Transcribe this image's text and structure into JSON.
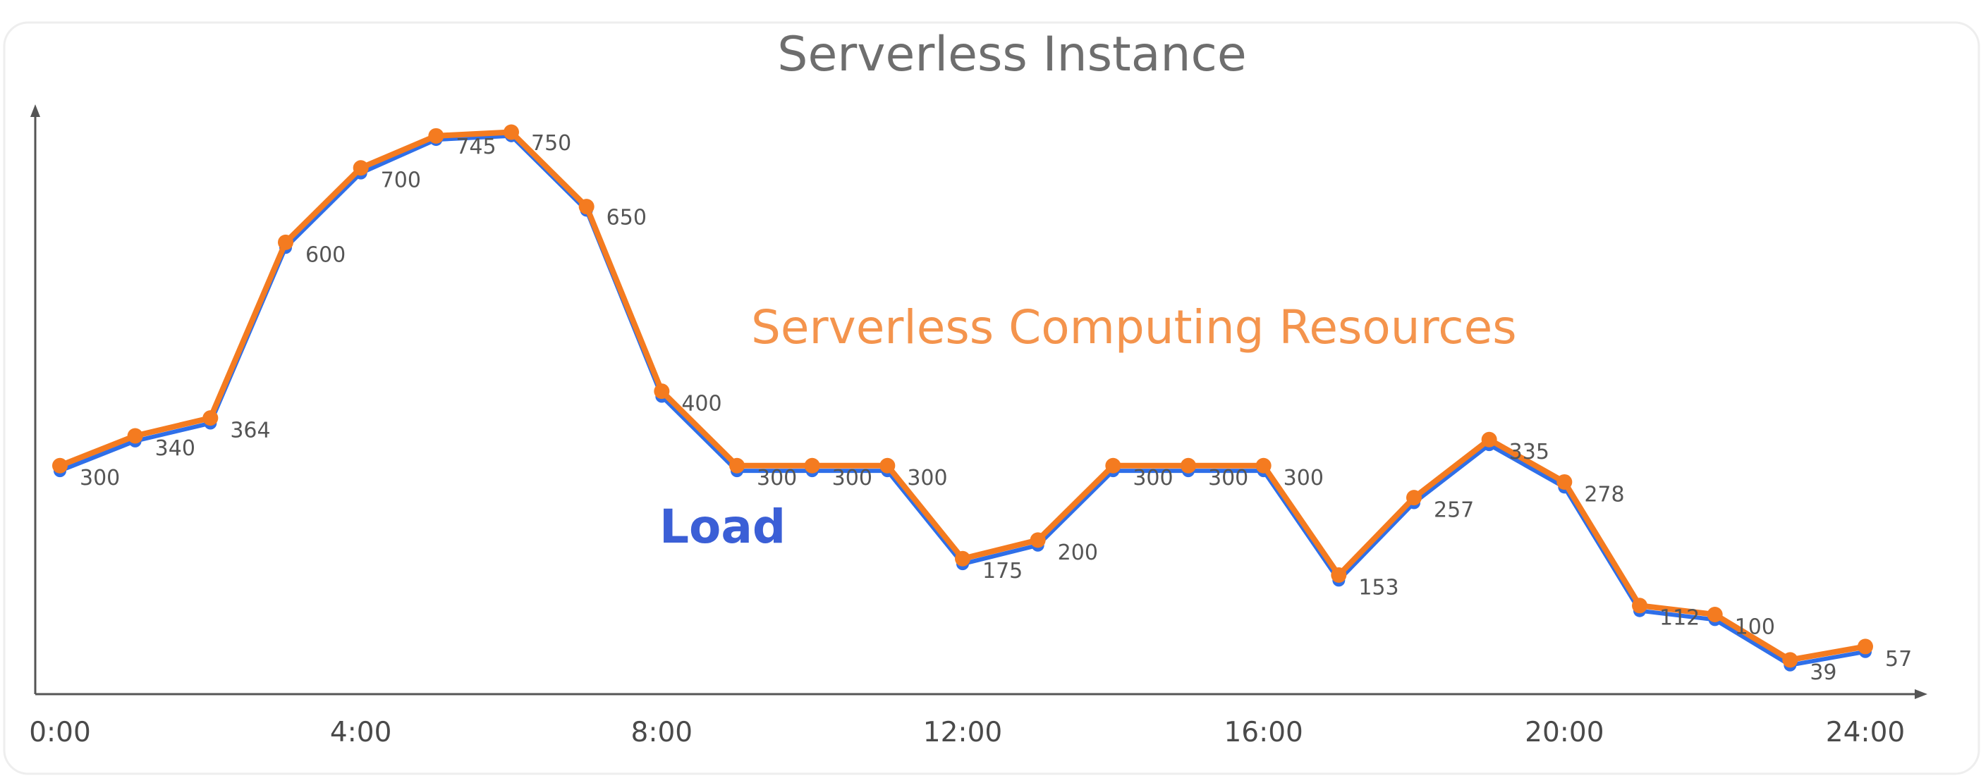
{
  "chart_data": {
    "type": "line",
    "title": "Serverless Instance",
    "xlabel": "",
    "ylabel": "",
    "grid": false,
    "x_ticks": [
      "0:00",
      "4:00",
      "8:00",
      "12:00",
      "16:00",
      "20:00",
      "24:00"
    ],
    "x": [
      0,
      1,
      2,
      3,
      4,
      5,
      6,
      7,
      8,
      9,
      10,
      11,
      12,
      13,
      14,
      15,
      16,
      17,
      18,
      19,
      20,
      21,
      22,
      23,
      24
    ],
    "xlim": [
      0,
      25
    ],
    "ylim": [
      0,
      800
    ],
    "series": [
      {
        "name": "Load",
        "color": "#2f6fe8",
        "values": [
          300,
          340,
          364,
          600,
          700,
          745,
          750,
          650,
          400,
          300,
          300,
          300,
          175,
          200,
          300,
          300,
          300,
          153,
          257,
          335,
          278,
          112,
          100,
          39,
          57
        ]
      },
      {
        "name": "Serverless Computing Resources",
        "color": "#f47b20",
        "values": [
          307,
          347,
          371,
          607,
          707,
          750,
          755,
          655,
          407,
          307,
          307,
          307,
          182,
          207,
          307,
          307,
          307,
          160,
          264,
          342,
          285,
          119,
          107,
          46,
          64
        ]
      }
    ],
    "data_labels": [
      "300",
      "340",
      "364",
      "600",
      "700",
      "745",
      "750",
      "650",
      "400",
      "300",
      "300",
      "300",
      "175",
      "200",
      "300",
      "300",
      "300",
      "153",
      "257",
      "335",
      "278",
      "112",
      "100",
      "39",
      "57"
    ]
  }
}
